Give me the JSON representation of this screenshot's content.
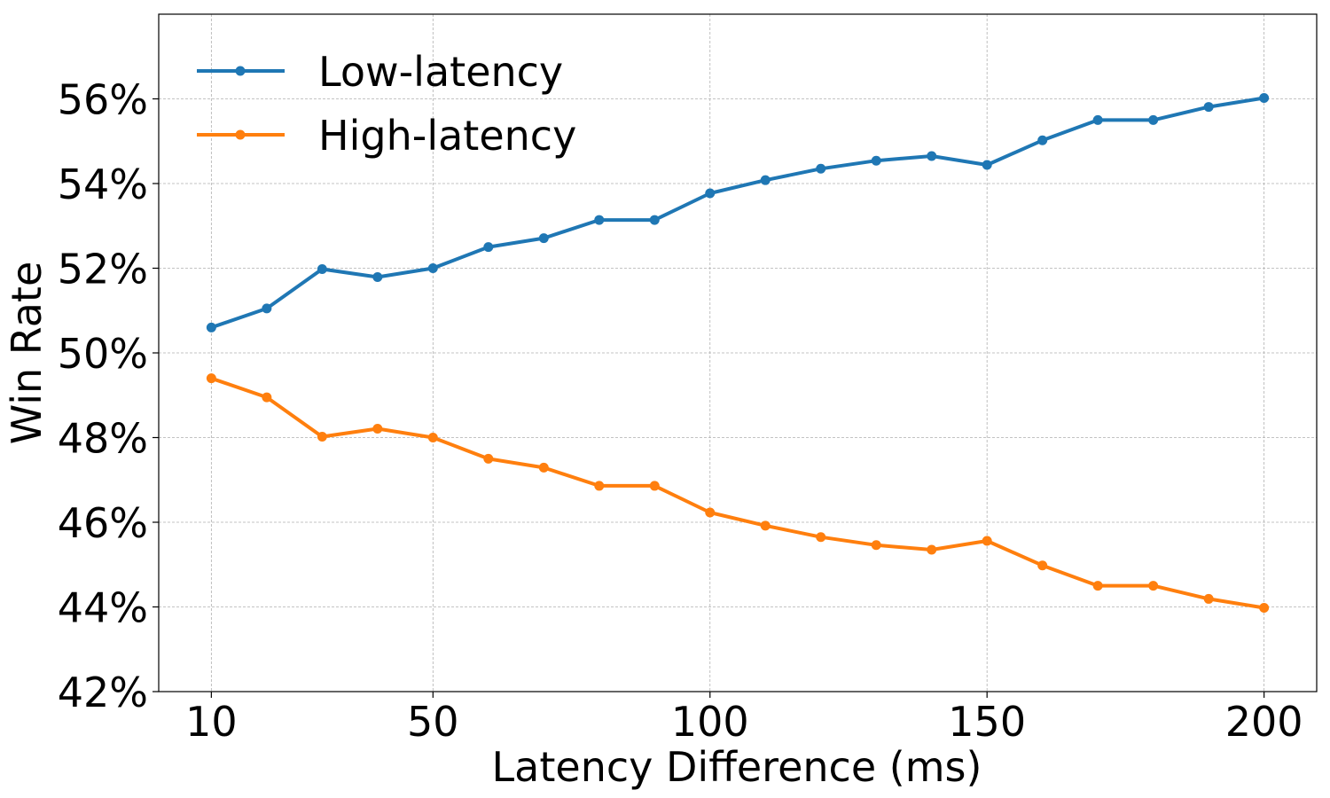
{
  "chart_data": {
    "type": "line",
    "title": "",
    "xlabel": "Latency Difference (ms)",
    "ylabel": "Win Rate",
    "x": [
      10,
      20,
      30,
      40,
      50,
      60,
      70,
      80,
      90,
      100,
      110,
      120,
      130,
      140,
      150,
      160,
      170,
      180,
      190,
      200
    ],
    "series": [
      {
        "name": "Low-latency",
        "color": "#1f77b4",
        "values": [
          50.6,
          51.05,
          51.98,
          51.79,
          52.0,
          52.5,
          52.71,
          53.14,
          53.14,
          53.77,
          54.08,
          54.35,
          54.54,
          54.65,
          54.44,
          55.02,
          55.5,
          55.5,
          55.81,
          56.02
        ]
      },
      {
        "name": "High-latency",
        "color": "#ff7f0e",
        "values": [
          49.4,
          48.95,
          48.02,
          48.21,
          48.0,
          47.5,
          47.29,
          46.86,
          46.86,
          46.23,
          45.92,
          45.65,
          45.46,
          45.35,
          45.56,
          44.98,
          44.5,
          44.5,
          44.19,
          43.98
        ]
      }
    ],
    "xlim": [
      0.5,
      209.5
    ],
    "ylim": [
      42,
      58
    ],
    "xticks": [
      10,
      50,
      100,
      150,
      200
    ],
    "xtick_labels": [
      "10",
      "50",
      "100",
      "150",
      "200"
    ],
    "yticks": [
      42,
      44,
      46,
      48,
      50,
      52,
      54,
      56
    ],
    "ytick_labels": [
      "42%",
      "44%",
      "46%",
      "48%",
      "50%",
      "52%",
      "54%",
      "56%"
    ],
    "grid": true,
    "legend_position": "top-left"
  }
}
